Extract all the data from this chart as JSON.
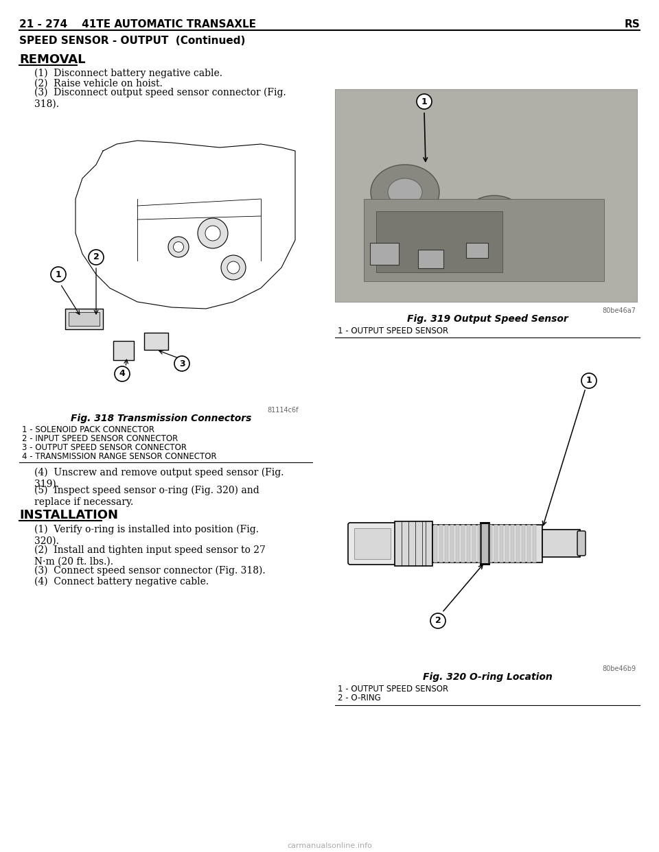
{
  "page_bg": "#ffffff",
  "header_left": "21 - 274    41TE AUTOMATIC TRANSAXLE",
  "header_right": "RS",
  "section_title": "SPEED SENSOR - OUTPUT  (Continued)",
  "removal_header": "REMOVAL",
  "removal_steps": [
    "(1)  Disconnect battery negative cable.",
    "(2)  Raise vehicle on hoist.",
    "(3)  Disconnect output speed sensor connector (Fig.\n318)."
  ],
  "fig318_caption": "Fig. 318 Transmission Connectors",
  "fig318_legend": [
    "1 - SOLENOID PACK CONNECTOR",
    "2 - INPUT SPEED SENSOR CONNECTOR",
    "3 - OUTPUT SPEED SENSOR CONNECTOR",
    "4 - TRANSMISSION RANGE SENSOR CONNECTOR"
  ],
  "fig318_code": "81114c6f",
  "removal_steps2": [
    "(4)  Unscrew and remove output speed sensor (Fig.\n319).",
    "(5)  Inspect speed sensor o-ring (Fig. 320) and\nreplace if necessary."
  ],
  "installation_header": "INSTALLATION",
  "installation_steps": [
    "(1)  Verify o-ring is installed into position (Fig.\n320).",
    "(2)  Install and tighten input speed sensor to 27\nN·m (20 ft. lbs.).",
    "(3)  Connect speed sensor connector (Fig. 318).",
    "(4)  Connect battery negative cable."
  ],
  "fig319_caption": "Fig. 319 Output Speed Sensor",
  "fig319_legend": [
    "1 - OUTPUT SPEED SENSOR"
  ],
  "fig319_code": "80be46a7",
  "fig320_caption": "Fig. 320 O-ring Location",
  "fig320_legend": [
    "1 - OUTPUT SPEED SENSOR",
    "2 - O-RING"
  ],
  "fig320_code": "80be46b9",
  "watermark": "carmanualsonline.info",
  "header_fontsize": 11,
  "body_fontsize": 10,
  "caption_fontsize": 10,
  "legend_fontsize": 8.5,
  "section_fontsize": 11,
  "removal_fontsize": 13
}
